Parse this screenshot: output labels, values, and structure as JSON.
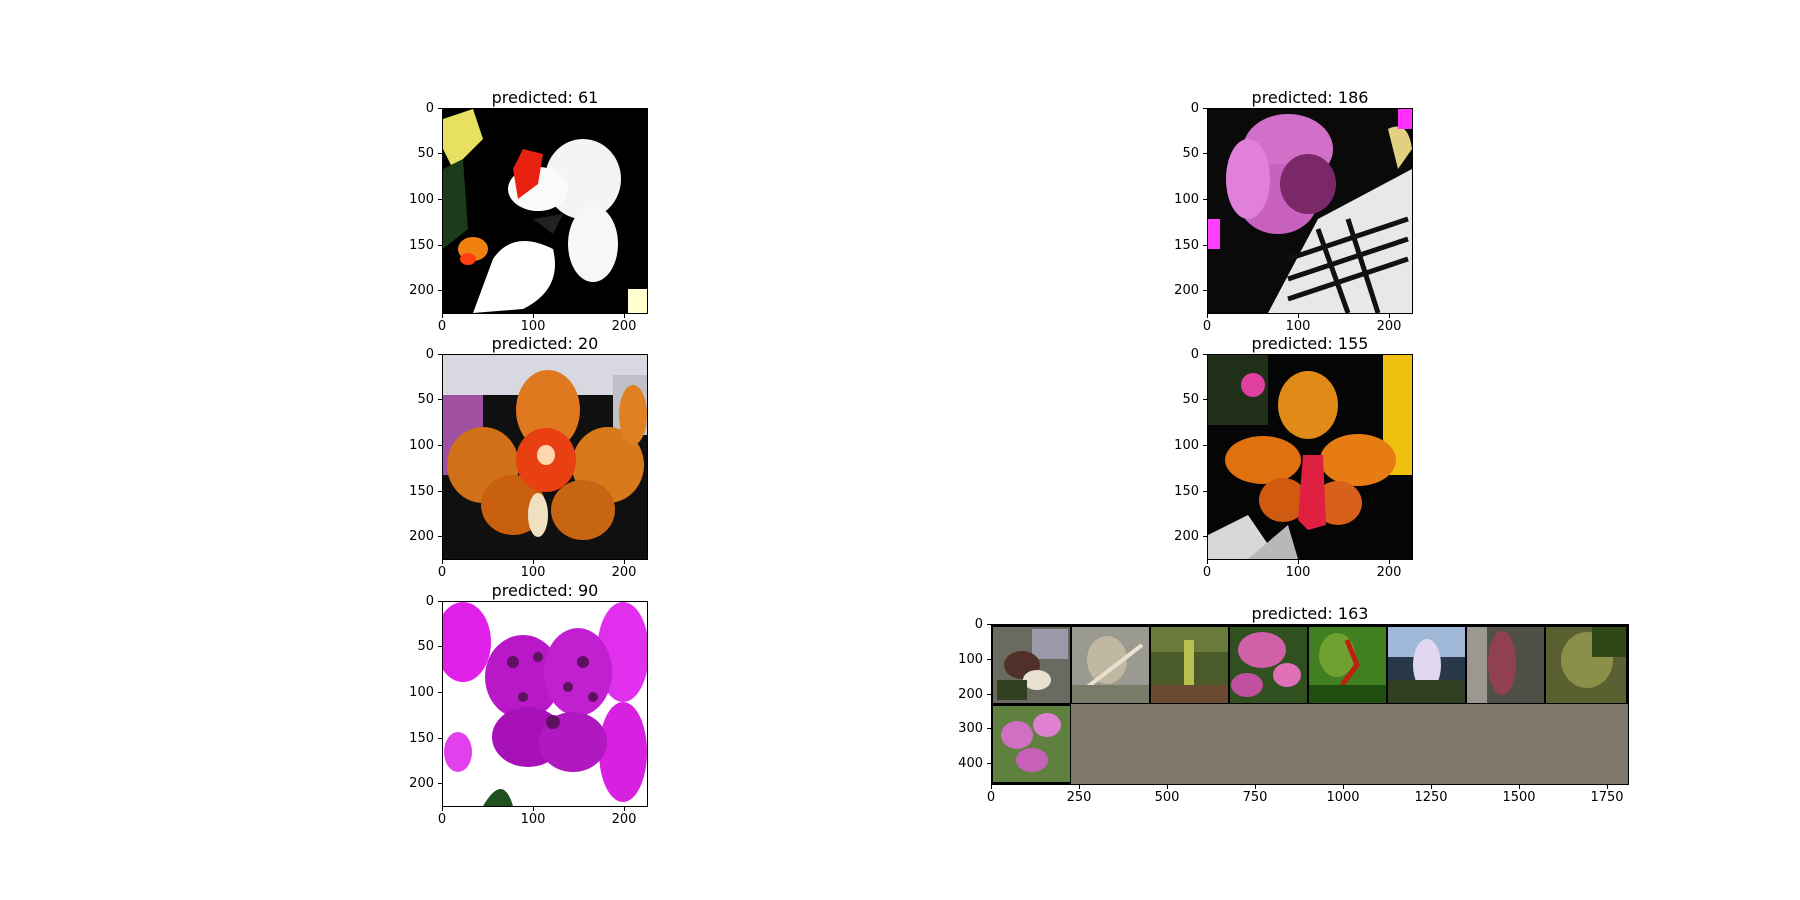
{
  "panels": [
    {
      "title": "predicted: 61",
      "yticks": [
        "0",
        "50",
        "100",
        "150",
        "200"
      ],
      "xticks": [
        "0",
        "100",
        "200"
      ]
    },
    {
      "title": "predicted: 186",
      "yticks": [
        "0",
        "50",
        "100",
        "150",
        "200"
      ],
      "xticks": [
        "0",
        "100",
        "200"
      ]
    },
    {
      "title": "predicted: 20",
      "yticks": [
        "0",
        "50",
        "100",
        "150",
        "200"
      ],
      "xticks": [
        "0",
        "100",
        "200"
      ]
    },
    {
      "title": "predicted: 155",
      "yticks": [
        "0",
        "50",
        "100",
        "150",
        "200"
      ],
      "xticks": [
        "0",
        "100",
        "200"
      ]
    },
    {
      "title": "predicted: 90",
      "yticks": [
        "0",
        "50",
        "100",
        "150",
        "200"
      ],
      "xticks": [
        "0",
        "100",
        "200"
      ]
    },
    {
      "title": "predicted: 163",
      "yticks": [
        "0",
        "100",
        "200",
        "300",
        "400"
      ],
      "xticks": [
        "0",
        "250",
        "500",
        "750",
        "1000",
        "1250",
        "1500",
        "1750"
      ]
    }
  ]
}
